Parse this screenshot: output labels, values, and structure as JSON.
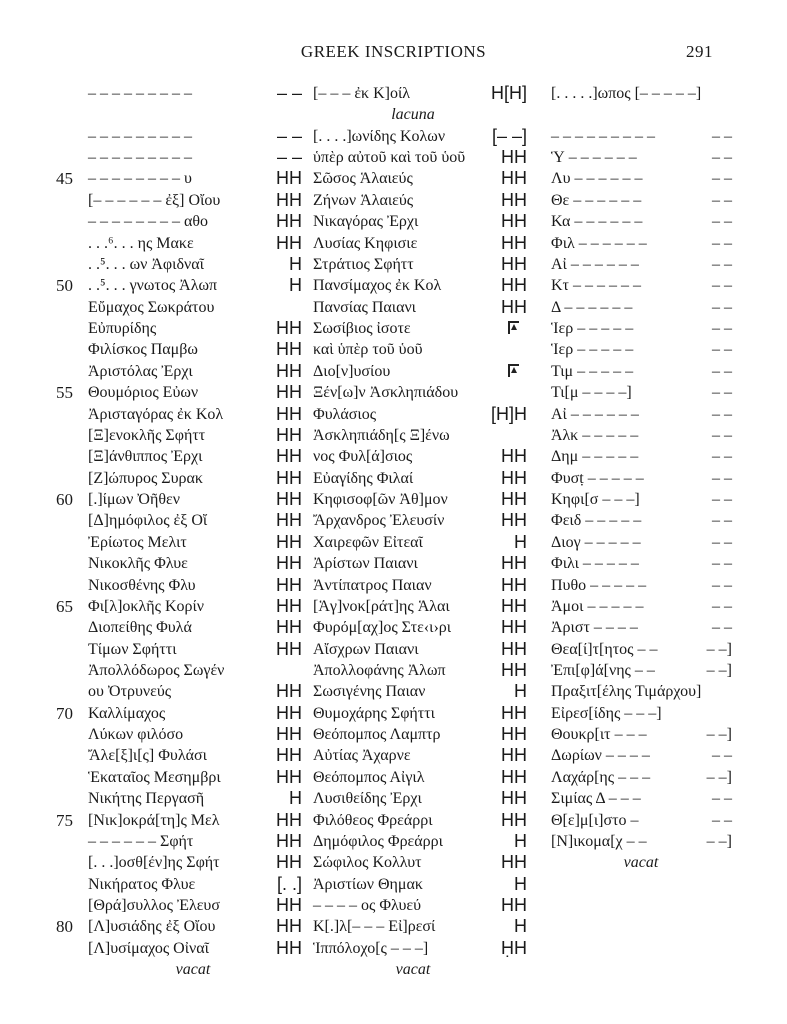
{
  "header": {
    "title": "GREEK INSCRIPTIONS",
    "page_number": "291"
  },
  "rows": [
    {
      "left": {
        "name": "– – – – – – – – –",
        "amount": "– –"
      },
      "middle": {
        "name": "[– – – ἐκ Κ]οίλ",
        "amount": "H[H]"
      },
      "right": {
        "name": "[. . . . .]ωπος [– – – – –]",
        "amount": ""
      }
    },
    {
      "left": {},
      "middle": {
        "note": "lacuna"
      },
      "right": {}
    },
    {
      "left": {
        "name": "– – – – – – – – –",
        "amount": "– –"
      },
      "middle": {
        "name": "[. . . .]ωνίδης Κολων",
        "amount": "[– –]"
      },
      "right": {
        "name": "– – – – – – – – –",
        "amount": "– –"
      }
    },
    {
      "left": {
        "name": "– – – – – – – – –",
        "amount": "– –"
      },
      "middle": {
        "name": "ὑπὲρ αὐτοῦ καὶ τοῦ ὑοῦ",
        "amount": "HH"
      },
      "right": {
        "name": "Ὑ – – – – – –",
        "amount": "– –"
      }
    },
    {
      "left": {
        "num": "45",
        "name": "– – – – – – – – υ",
        "amount": "HH"
      },
      "middle": {
        "name": "Σῶσος Ἁλαιεύς",
        "amount": "HH"
      },
      "right": {
        "name": "Λυ – – – – – –",
        "amount": "– –"
      }
    },
    {
      "left": {
        "name": "[– – – – – – ἐξ] Οἴου",
        "amount": "HH"
      },
      "middle": {
        "name": "Ζήνων Ἁλαιεύς",
        "amount": "HH"
      },
      "right": {
        "name": "Θε – – – – – –",
        "amount": "– –"
      }
    },
    {
      "left": {
        "name": "– – – – – – – – αθο",
        "amount": "HH"
      },
      "middle": {
        "name": "Νικαγόρας Ἐρχι",
        "amount": "HH"
      },
      "right": {
        "name": "Κα – – – – – –",
        "amount": "– –"
      }
    },
    {
      "left": {
        "name": ". . .⁶. . . ης Μακε",
        "amount": "HH"
      },
      "middle": {
        "name": "Λυσίας Κηφισιε",
        "amount": "HH"
      },
      "right": {
        "name": "Φιλ – – – – – –",
        "amount": "– –"
      }
    },
    {
      "left": {
        "name": ". .⁵. . . ων Ἀφιδναῖ",
        "amount": "H"
      },
      "middle": {
        "name": "Στράτιος Σφήττ",
        "amount": "HH"
      },
      "right": {
        "name": "Αἰ – – – – – –",
        "amount": "– –"
      }
    },
    {
      "left": {
        "num": "50",
        "name": ". .⁵. . . γνωτος Ἀλωπ",
        "amount": "H"
      },
      "middle": {
        "name": "Πανσίμαχος ἐκ Κολ",
        "amount": "HH"
      },
      "right": {
        "name": "Κτ – – – – – –",
        "amount": "– –"
      }
    },
    {
      "left": {
        "name": "Εὔμαχος Σωκράτου",
        "amount": ""
      },
      "middle": {
        "name": "Πανσίας Παιανι",
        "amount": "HH"
      },
      "right": {
        "name": "Δ – – – – – –",
        "amount": "– –"
      }
    },
    {
      "left": {
        "name": "Εὐπυρίδης",
        "amount": "HH"
      },
      "middle": {
        "name": "Σωσίβιος ἰσοτε",
        "amount_icon": "pentekonta-icon"
      },
      "right": {
        "name": "Ἱερ – – – – –",
        "amount": "– –"
      }
    },
    {
      "left": {
        "name": "Φιλίσκος Παμβω",
        "amount": "HH"
      },
      "middle": {
        "name": "καὶ ὑπὲρ τοῦ ὑοῦ",
        "amount": ""
      },
      "right": {
        "name": "Ἱερ – – – – –",
        "amount": "– –"
      }
    },
    {
      "left": {
        "name": "Ἀριστόλας Ἐρχι",
        "amount": "HH"
      },
      "middle": {
        "name": "Διο[ν]υσίου",
        "amount_icon": "pentekonta-icon"
      },
      "right": {
        "name": "Τιμ – – – – –",
        "amount": "– –"
      }
    },
    {
      "left": {
        "num": "55",
        "name": "Θουμόριος Εὐων",
        "amount": "HH"
      },
      "middle": {
        "name": "Ξέν[ω]ν Ἀσκληπιάδου",
        "amount": ""
      },
      "right": {
        "name": "Τι[μ – – – –]",
        "amount": "– –"
      }
    },
    {
      "left": {
        "name": "Ἀρισταγόρας ἐκ Κολ",
        "amount": "HH"
      },
      "middle": {
        "name": "Φυλάσιος",
        "amount": "[H]H"
      },
      "right": {
        "name": "Αἰ – – – – – –",
        "amount": "– –"
      }
    },
    {
      "left": {
        "name": "[Ξ]ενοκλῆς Σφήττ",
        "amount": "HH"
      },
      "middle": {
        "name": "Ἀσκληπιάδη[ς Ξ]ένω",
        "amount": ""
      },
      "right": {
        "name": "Ἀλκ – – – – –",
        "amount": "– –"
      }
    },
    {
      "left": {
        "name": "[Ξ]άνθιππος Ἐρχι",
        "amount": "HH"
      },
      "middle": {
        "name": "νος Φυλ[ά]σιος",
        "amount": "HH"
      },
      "right": {
        "name": "Δημ – – – – –",
        "amount": "– –"
      }
    },
    {
      "left": {
        "name": "[Ζ]ώπυρος Συρακ",
        "amount": "HH"
      },
      "middle": {
        "name": "Εὐαγίδης Φιλαί",
        "amount": "HH"
      },
      "right": {
        "name": "Φυσṭ – – – – –",
        "amount": "– –"
      }
    },
    {
      "left": {
        "num": "60",
        "name": "[.]ίμων Ὀῆθεν",
        "amount": "HH"
      },
      "middle": {
        "name": "Κηφισοφ[ῶν Ἀθ]μον",
        "amount": "HH"
      },
      "right": {
        "name": "Κηφι[σ – – –]",
        "amount": "– –"
      }
    },
    {
      "left": {
        "name": "[Δ]ημόφιλος ἐξ Οἴ",
        "amount": "HH"
      },
      "middle": {
        "name": "Ἄρχανδρος Ἐλευσίν",
        "amount": "HH"
      },
      "right": {
        "name": "Φειδ – – – – –",
        "amount": "– –"
      }
    },
    {
      "left": {
        "name": "Ἐρίωτος Μελιτ",
        "amount": "HH"
      },
      "middle": {
        "name": "Χαιρεφῶν Εἰτεαῖ",
        "amount": "H"
      },
      "right": {
        "name": "Διογ – – – – –",
        "amount": "– –"
      }
    },
    {
      "left": {
        "name": "Νικοκλῆς Φλυε",
        "amount": "HH"
      },
      "middle": {
        "name": "Ἀρίστων Παιανι",
        "amount": "HH"
      },
      "right": {
        "name": "Φιλι – – – – –",
        "amount": "– –"
      }
    },
    {
      "left": {
        "name": "Νικοσθένης Φλυ",
        "amount": "HH"
      },
      "middle": {
        "name": "Ἀντίπατρος Παιαν",
        "amount": "HH"
      },
      "right": {
        "name": "Πυθο – – – – –",
        "amount": "– –"
      }
    },
    {
      "left": {
        "num": "65",
        "name": "Φι[λ]οκλῆς Κορίν",
        "amount": "HH"
      },
      "middle": {
        "name": "[Ἁγ]νοκ[ράτ]ης Ἁλαι",
        "amount": "HH"
      },
      "right": {
        "name": "Ἀμοι – – – – –",
        "amount": "– –"
      }
    },
    {
      "left": {
        "name": "Διοπείθης Φυλά",
        "amount": "HH"
      },
      "middle": {
        "name": "Φυρόμ[αχ]ος Στε‹ι›ρι",
        "amount": "HH"
      },
      "right": {
        "name": "Ἀριστ – – – –",
        "amount": "– –"
      }
    },
    {
      "left": {
        "name": "Τίμων Σφήττι",
        "amount": "HH"
      },
      "middle": {
        "name": "Αἴσχρων Παιανι",
        "amount": "HH"
      },
      "right": {
        "name": "Θεα[ί]τ[ητος – –",
        "amount": "– –]"
      }
    },
    {
      "left": {
        "name": "Ἀπολλόδωρος Σωγέν",
        "amount": ""
      },
      "middle": {
        "name": "Ἀπολλοφάνης Ἀλωπ",
        "amount": "HH"
      },
      "right": {
        "name": "Ἐπι[φ]ά[νης – –",
        "amount": "– –]"
      }
    },
    {
      "left": {
        "name": "ου Ὀτρυνεύς",
        "amount": "HH"
      },
      "middle": {
        "name": "Σωσιγένης Παιαν",
        "amount": "H"
      },
      "right": {
        "name": "Πραξιτ[έλης Τιμάρχου]",
        "amount": ""
      }
    },
    {
      "left": {
        "num": "70",
        "name": "Καλλίμαχος",
        "amount": "HH"
      },
      "middle": {
        "name": "Θυμοχάρης Σφήττι",
        "amount": "HH"
      },
      "right": {
        "name": "Εἰρεσ[ίδης – – –]",
        "amount": ""
      }
    },
    {
      "left": {
        "name": "Λύκων φιλόσο",
        "amount": "HH"
      },
      "middle": {
        "name": "Θεόπομπος Λαμπτρ",
        "amount": "HH"
      },
      "right": {
        "name": "Θουκρ[ιτ – – –",
        "amount": "– –]"
      }
    },
    {
      "left": {
        "name": "Ἄλε[ξ]ι[ς] Φυλάσι",
        "amount": "HH"
      },
      "middle": {
        "name": "Αὐτίας Ἀχαρνε",
        "amount": "HH"
      },
      "right": {
        "name": "Δωρίων – – – –",
        "amount": "– –"
      }
    },
    {
      "left": {
        "name": "Ἑκαταῖος Μεσημβρι",
        "amount": "HH"
      },
      "middle": {
        "name": "Θεόπομπος Αἰγιλ",
        "amount": "HH"
      },
      "right": {
        "name": "Λαχάρ[ης – – –",
        "amount": "– –]"
      }
    },
    {
      "left": {
        "name": "Νικήτης Περγασῆ",
        "amount": "H"
      },
      "middle": {
        "name": "Λυσιθείδης Ἐρχι",
        "amount": "HH"
      },
      "right": {
        "name": "Σιμίας Δ – – –",
        "amount": "– –"
      }
    },
    {
      "left": {
        "num": "75",
        "name": "[Νικ]οκρά[τη]ς Μελ",
        "amount": "HH"
      },
      "middle": {
        "name": "Φιλόθεος Φρεάρρι",
        "amount": "HH"
      },
      "right": {
        "name": "Θ[ε]μ[ι]στο –",
        "amount": "– –"
      }
    },
    {
      "left": {
        "name": "– – – – – – Σφήτ",
        "amount": "HH"
      },
      "middle": {
        "name": "Δημόφιλος Φρεάρρι",
        "amount": "H"
      },
      "right": {
        "name": "[Ν]ικομα[χ – –",
        "amount": "– –]"
      }
    },
    {
      "left": {
        "name": "[. . .]οσθ[έν]ης Σφήτ",
        "amount": "HH"
      },
      "middle": {
        "name": "Σώφιλος Κολλυτ",
        "amount": "HH"
      },
      "right": {
        "note": "vacat"
      }
    },
    {
      "left": {
        "name": "Νικήρατος Φλυε",
        "amount": "[. .]"
      },
      "middle": {
        "name": "Ἀριστίων Θημακ",
        "amount": "H"
      },
      "right": {}
    },
    {
      "left": {
        "name": "[Θρά]συλλος Ἐλευσ",
        "amount": "HH"
      },
      "middle": {
        "name": "– – – – ος Φλυεύ",
        "amount": "HH"
      },
      "right": {}
    },
    {
      "left": {
        "num": "80",
        "name": "[Λ]υσιάδης ἐξ Οἴου",
        "amount": "HH"
      },
      "middle": {
        "name": "Κ[.]λ[– – – Εἰ]ρεσί",
        "amount": "H"
      },
      "right": {}
    },
    {
      "left": {
        "name": "[Λ]υσίμαχος Οἰναῖ",
        "amount": "HH"
      },
      "middle": {
        "name": "Ἱππόλοχο[ς – – –]",
        "amount": "ḤH"
      },
      "right": {}
    },
    {
      "left": {
        "note": "vacat"
      },
      "middle": {
        "note": "vacat"
      },
      "right": {}
    }
  ]
}
